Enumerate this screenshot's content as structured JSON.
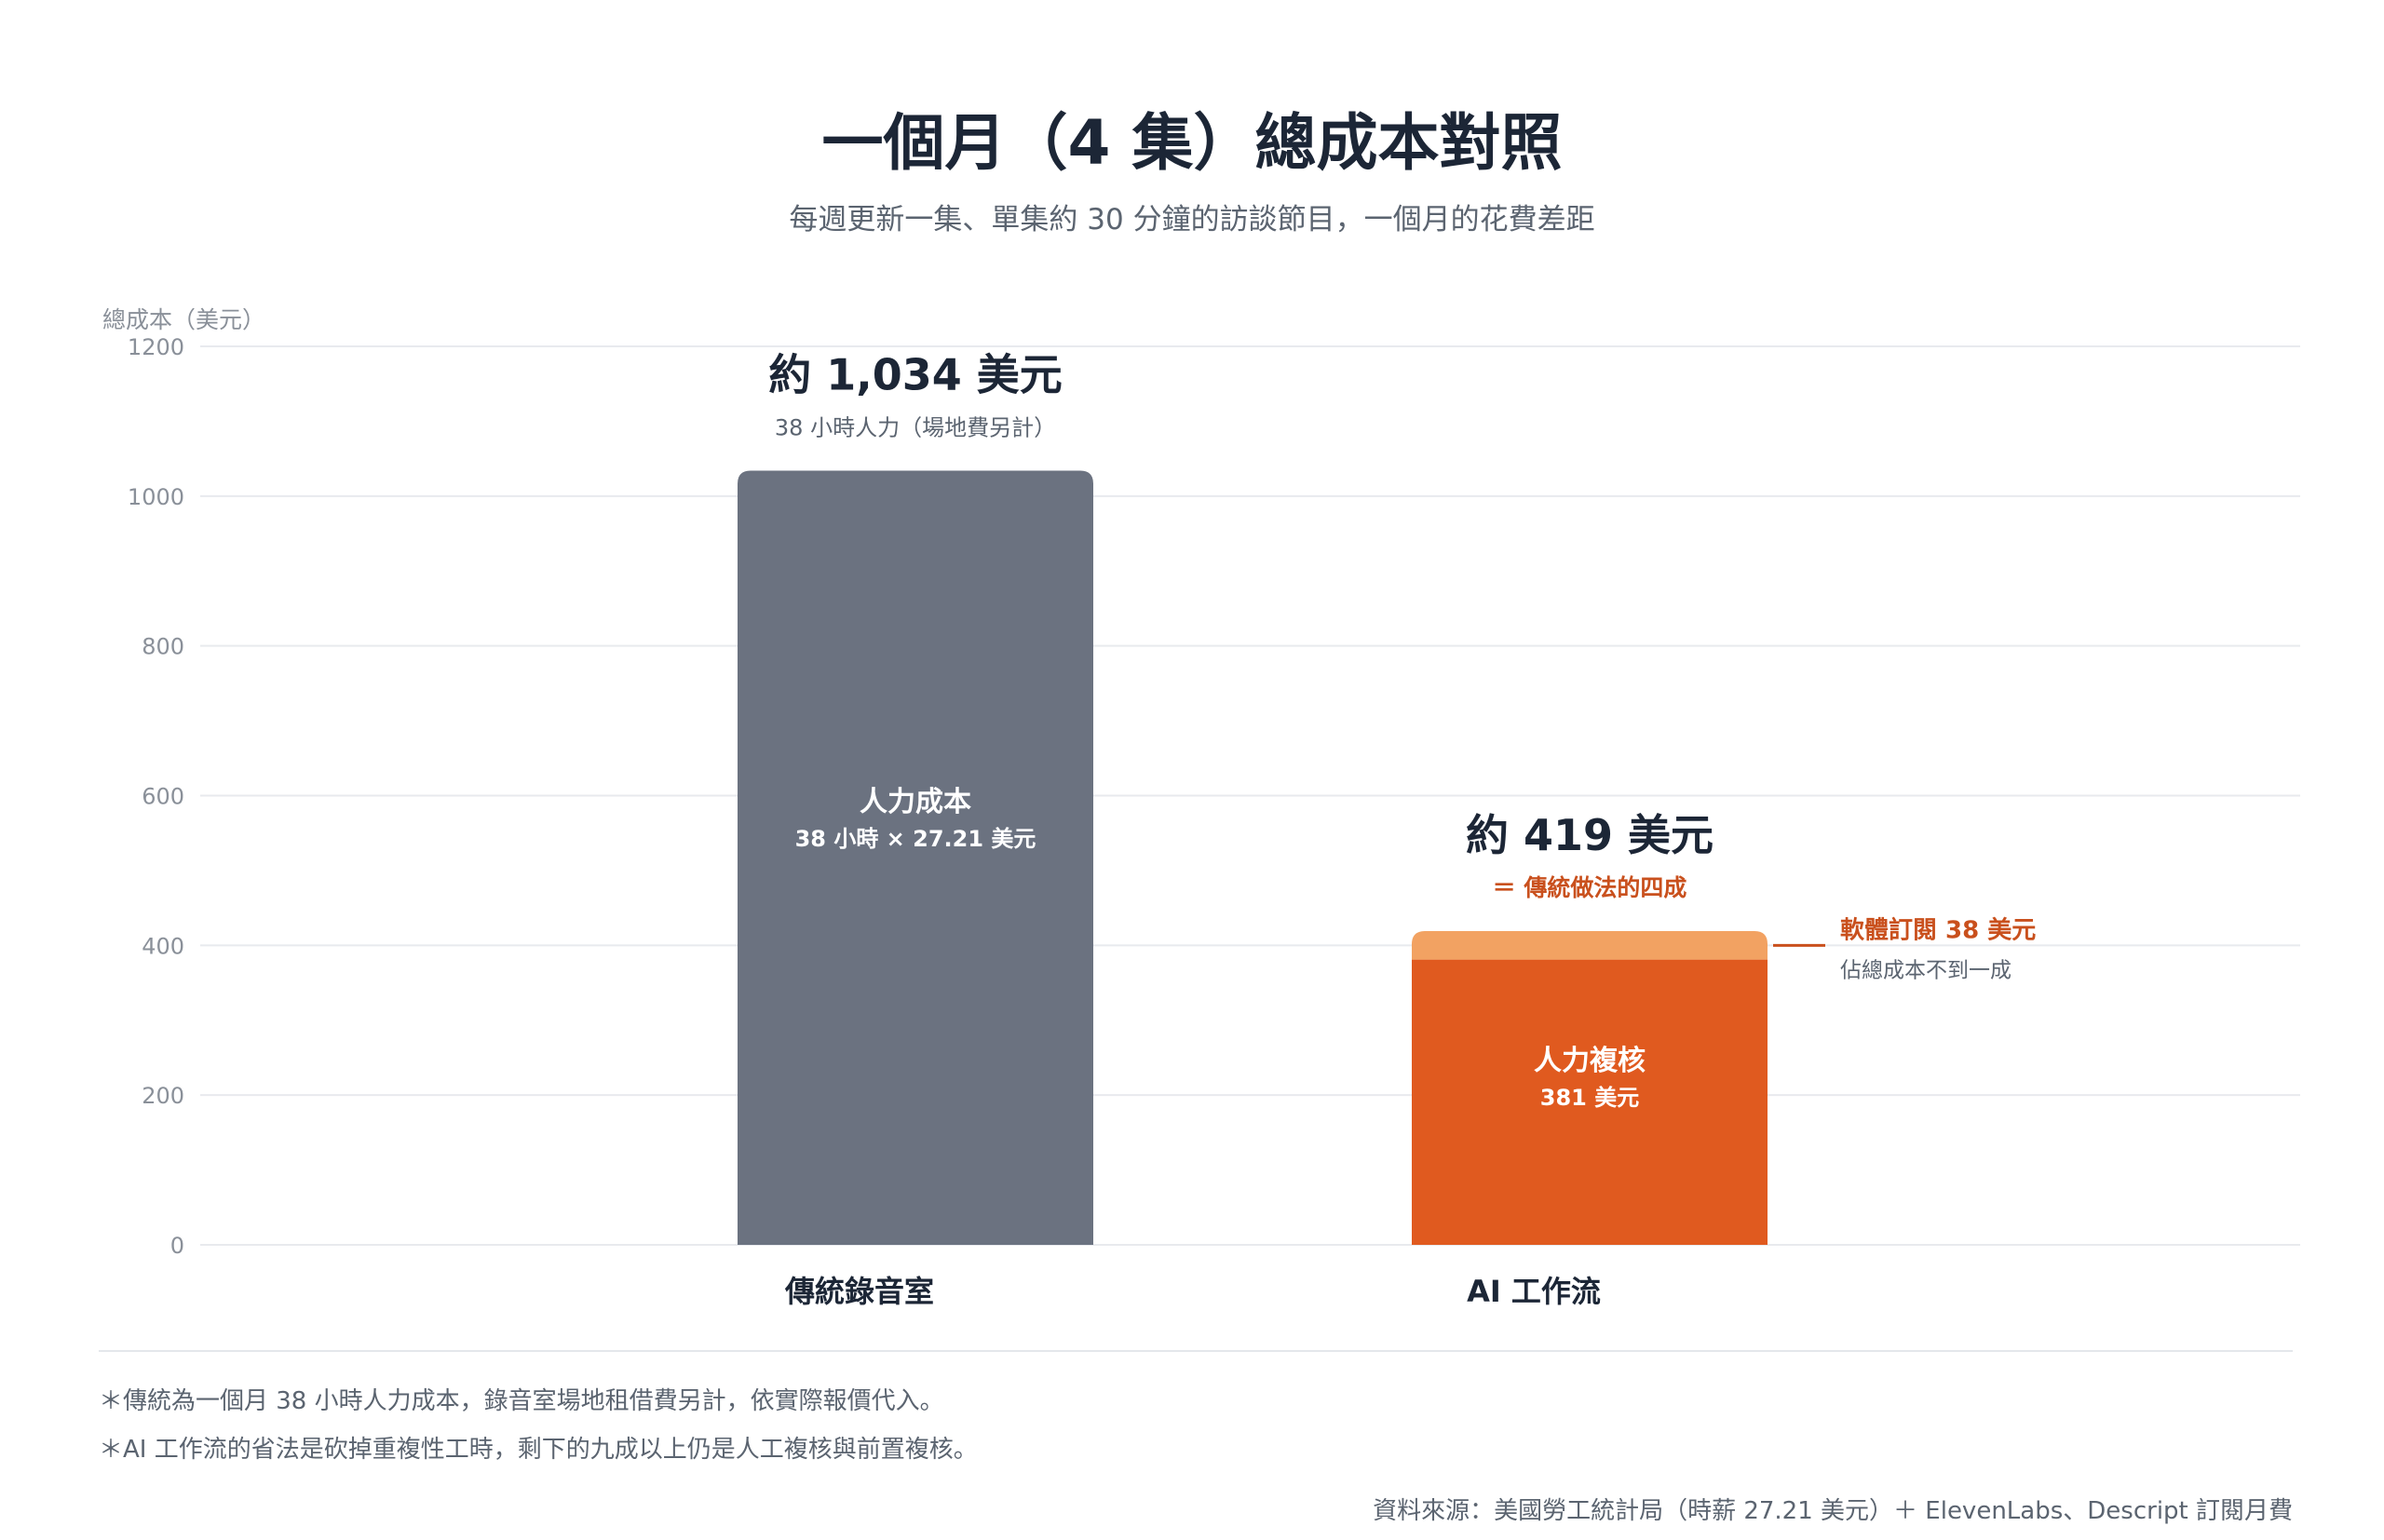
{
  "title": "一個月（4 集）總成本對照",
  "subtitle": "每週更新一集、單集約 30 分鐘的訪談節目，一個月的花費差距",
  "chart_data": {
    "type": "bar",
    "stacked": true,
    "ylabel": "總成本（美元）",
    "ylim": [
      0,
      1200
    ],
    "yticks": [
      0,
      200,
      400,
      600,
      800,
      1000,
      1200
    ],
    "grid": true,
    "categories": [
      "傳統錄音室",
      "AI 工作流"
    ],
    "bars": [
      {
        "category": "傳統錄音室",
        "total_label": "約 1,034 美元",
        "total_sublabel": "38 小時人力（場地費另計）",
        "segments": [
          {
            "name": "人力成本",
            "value": 1034,
            "label_line1": "人力成本",
            "label_line2": "38 小時 × 27.21 美元",
            "color": "#6b7280"
          }
        ]
      },
      {
        "category": "AI 工作流",
        "total_label": "約 419 美元",
        "total_sublabel": "＝ 傳統做法的四成",
        "segments": [
          {
            "name": "人力複核",
            "value": 381,
            "label_line1": "人力複核",
            "label_line2": "381 美元",
            "color": "#e05a1f"
          },
          {
            "name": "軟體訂閱",
            "value": 38,
            "color": "#f2a262"
          }
        ],
        "callout_title": "軟體訂閱 38 美元",
        "callout_sub": "佔總成本不到一成"
      }
    ],
    "colors": {
      "traditional": "#6b7280",
      "review": "#e05a1f",
      "software": "#f2a262",
      "accent_text": "#c9501d",
      "grid": "#e8eaee",
      "axis_text": "#8a9099"
    }
  },
  "notes": [
    "＊傳統為一個月 38 小時人力成本，錄音室場地租借費另計，依實際報價代入。",
    "＊AI 工作流的省法是砍掉重複性工時，剩下的九成以上仍是人工複核與前置複核。"
  ],
  "source": "資料來源：美國勞工統計局（時薪 27.21 美元）＋ ElevenLabs、Descript 訂閱月費"
}
